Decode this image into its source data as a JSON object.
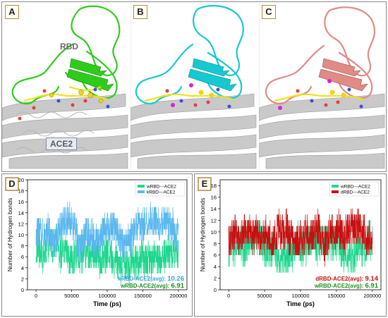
{
  "panels": {
    "a": {
      "letter": "A",
      "rbd_label": "RBD",
      "ace2_label": "ACE2",
      "rbd_color": "#2fcb1c"
    },
    "b": {
      "letter": "B",
      "rbd_color": "#16c9d1"
    },
    "c": {
      "letter": "C",
      "rbd_color": "#e08b86"
    }
  },
  "interface_color": "#f2e21a",
  "ace2_color": "#c9c9c9",
  "chart_data": [
    {
      "panel_letter": "D",
      "type": "line",
      "xlabel": "Time (ps)",
      "ylabel": "Number of Hydrogen bonds",
      "xlim": [
        -12000,
        212000
      ],
      "ylim": [
        0,
        20
      ],
      "x_ticks": [
        0,
        50000,
        100000,
        150000,
        200000
      ],
      "y_ticks": [
        0,
        2,
        4,
        6,
        8,
        10,
        12,
        14,
        16,
        18,
        20
      ],
      "legend_position": "top-right",
      "series": [
        {
          "name": "wRBD---ACE2",
          "color": "#1fd68e",
          "mean": 6.91,
          "amplitude": 2.4,
          "min": 1,
          "max": 12,
          "avg_label": "wRBD-ACE2(avg):",
          "avg_value": "6.91",
          "avg_color": "#1e8f1e"
        },
        {
          "name": "kRBD---ACE2",
          "color": "#5ab7f0",
          "mean": 10.26,
          "amplitude": 2.2,
          "min": 5,
          "max": 17,
          "avg_label": "kRBD-ACE2(avg):",
          "avg_value": "10.26",
          "avg_color": "#3a9fe0"
        }
      ]
    },
    {
      "panel_letter": "E",
      "type": "line",
      "xlabel": "Time (ps)",
      "ylabel": "Number of Hydrogen bonds",
      "xlim": [
        -12000,
        212000
      ],
      "ylim": [
        0,
        19
      ],
      "x_ticks": [
        0,
        50000,
        100000,
        150000,
        200000
      ],
      "y_ticks": [
        0,
        2,
        4,
        6,
        8,
        10,
        12,
        14,
        16,
        18
      ],
      "legend_position": "top-right",
      "series": [
        {
          "name": "wRBD---ACE2",
          "color": "#1fd68e",
          "mean": 6.91,
          "amplitude": 2.4,
          "min": 1,
          "max": 12,
          "avg_label": "wRBD-ACE2(avg):",
          "avg_value": "6.91",
          "avg_color": "#1e8f1e"
        },
        {
          "name": "dRBD---ACE2",
          "color": "#c80f0f",
          "mean": 9.14,
          "amplitude": 2.3,
          "min": 4,
          "max": 16,
          "avg_label": "dRBD-ACE2(avg):",
          "avg_value": "9.14",
          "avg_color": "#c80f0f"
        }
      ]
    }
  ]
}
